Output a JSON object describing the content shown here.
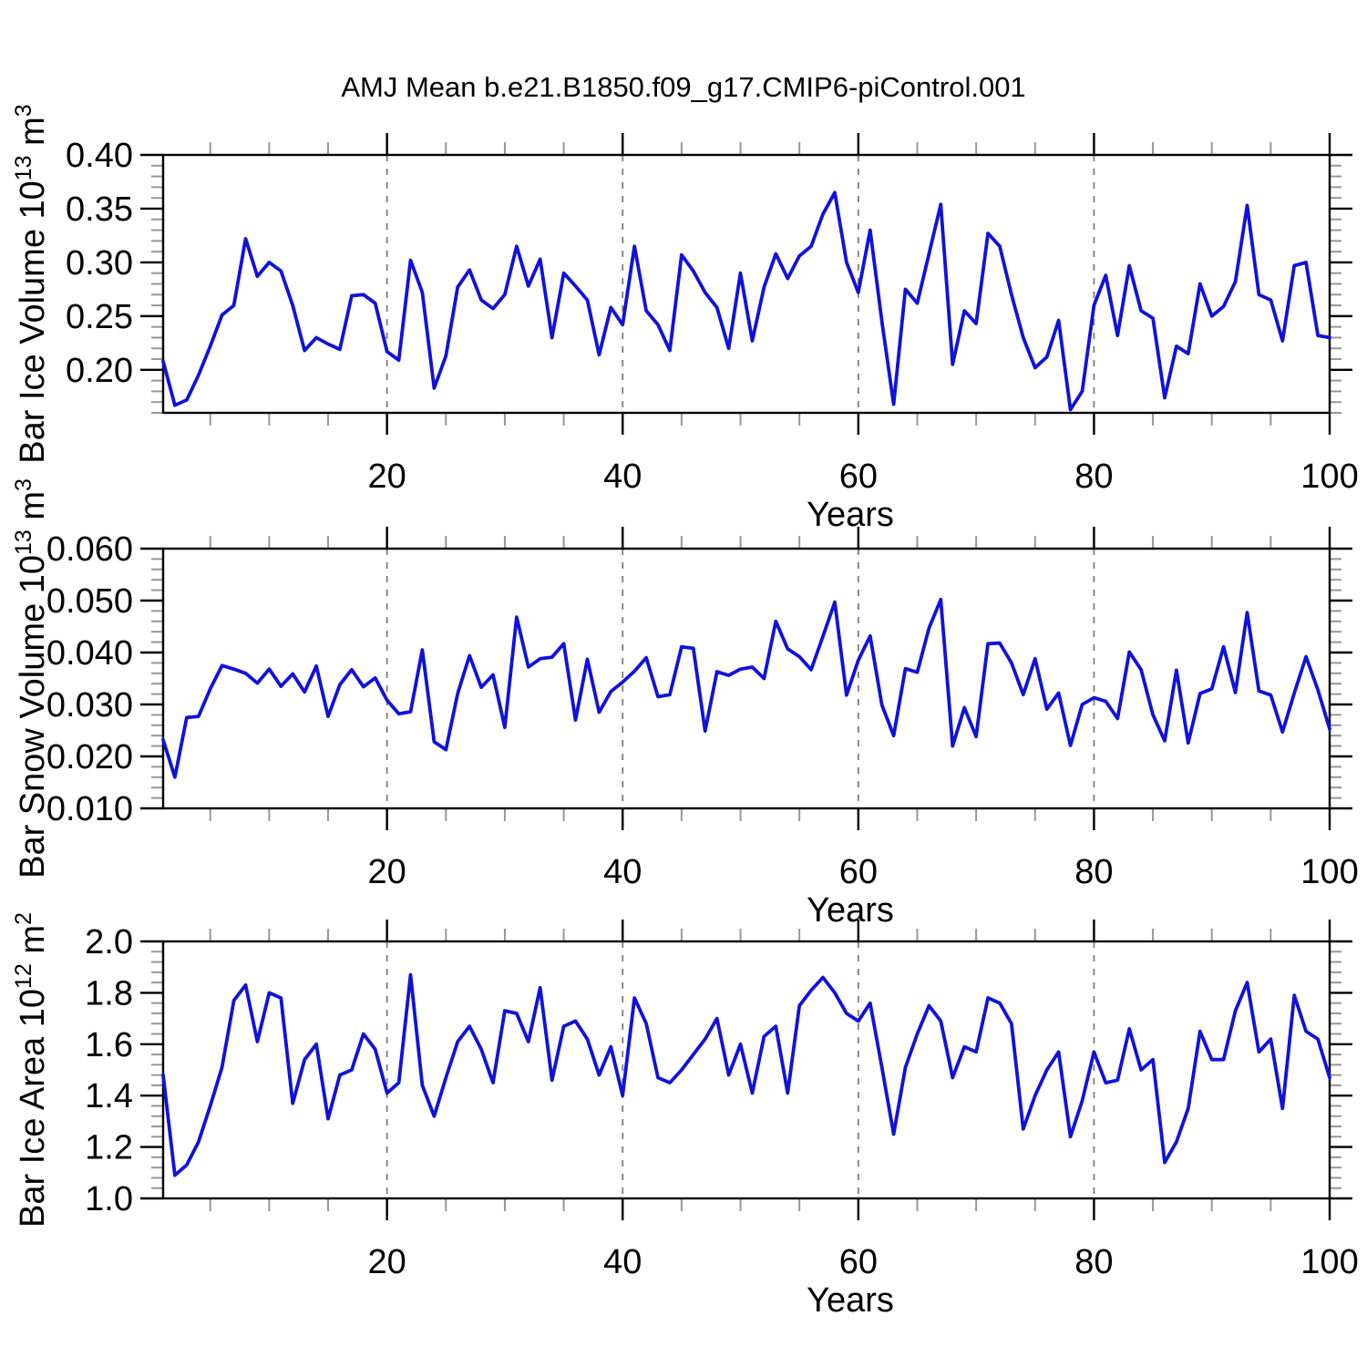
{
  "title": "AMJ Mean b.e21.B1850.f09_g17.CMIP6-piControl.001",
  "xlabel": "Years",
  "line_color": "#0f12dd",
  "chart_data": [
    {
      "type": "line",
      "title": "AMJ Mean b.e21.B1850.f09_g17.CMIP6-piControl.001",
      "xlabel": "Years",
      "ylabel": "Bar Ice Volume 10^13 m^3",
      "ylabel_rich": [
        {
          "t": "Bar Ice Volume 10"
        },
        {
          "t": "13",
          "sup": 1
        },
        {
          "t": " m"
        },
        {
          "t": "3",
          "sup": 1
        }
      ],
      "x_start": 1,
      "x_end": 100,
      "xticks_major": [
        20,
        40,
        60,
        80,
        100
      ],
      "xtick_labels": [
        "20",
        "40",
        "60",
        "80",
        "100"
      ],
      "xminor_step": 5,
      "grid_x": [
        20,
        40,
        60,
        80
      ],
      "ylim": [
        0.16,
        0.4
      ],
      "yticks": [
        0.2,
        0.25,
        0.3,
        0.35,
        0.4
      ],
      "ytick_labels": [
        "0.20",
        "0.25",
        "0.30",
        "0.35",
        "0.40"
      ],
      "yminor_step": 0.01,
      "legend": "none",
      "grid": "vertical-dashed",
      "values": [
        0.208,
        0.167,
        0.172,
        0.195,
        0.222,
        0.251,
        0.26,
        0.322,
        0.287,
        0.3,
        0.292,
        0.26,
        0.218,
        0.23,
        0.224,
        0.219,
        0.269,
        0.27,
        0.262,
        0.217,
        0.209,
        0.302,
        0.272,
        0.183,
        0.213,
        0.277,
        0.293,
        0.265,
        0.257,
        0.27,
        0.315,
        0.278,
        0.303,
        0.23,
        0.29,
        0.278,
        0.265,
        0.214,
        0.258,
        0.242,
        0.315,
        0.255,
        0.242,
        0.218,
        0.307,
        0.292,
        0.272,
        0.258,
        0.22,
        0.29,
        0.227,
        0.277,
        0.308,
        0.285,
        0.306,
        0.315,
        0.345,
        0.365,
        0.3,
        0.272,
        0.33,
        0.245,
        0.168,
        0.275,
        0.262,
        0.308,
        0.354,
        0.205,
        0.255,
        0.243,
        0.327,
        0.315,
        0.27,
        0.23,
        0.202,
        0.212,
        0.246,
        0.163,
        0.18,
        0.26,
        0.288,
        0.232,
        0.297,
        0.255,
        0.248,
        0.174,
        0.222,
        0.215,
        0.28,
        0.25,
        0.259,
        0.282,
        0.353,
        0.27,
        0.265,
        0.227,
        0.297,
        0.3,
        0.232,
        0.23
      ]
    },
    {
      "type": "line",
      "title": "",
      "xlabel": "Years",
      "ylabel": "Bar Snow Volume 10^13 m^3",
      "ylabel_rich": [
        {
          "t": "Bar Snow Volume 10"
        },
        {
          "t": "13",
          "sup": 1
        },
        {
          "t": " m"
        },
        {
          "t": "3",
          "sup": 1
        }
      ],
      "x_start": 1,
      "x_end": 100,
      "xticks_major": [
        20,
        40,
        60,
        80,
        100
      ],
      "xtick_labels": [
        "20",
        "40",
        "60",
        "80",
        "100"
      ],
      "xminor_step": 5,
      "grid_x": [
        20,
        40,
        60,
        80
      ],
      "ylim": [
        0.01,
        0.06
      ],
      "yticks": [
        0.01,
        0.02,
        0.03,
        0.04,
        0.05,
        0.06
      ],
      "ytick_labels": [
        "0.010",
        "0.020",
        "0.030",
        "0.040",
        "0.050",
        "0.060"
      ],
      "yminor_step": 0.002,
      "legend": "none",
      "grid": "vertical-dashed",
      "values": [
        0.0232,
        0.016,
        0.0275,
        0.0277,
        0.033,
        0.0375,
        0.0368,
        0.036,
        0.0341,
        0.0368,
        0.0335,
        0.0359,
        0.0324,
        0.0374,
        0.0277,
        0.0338,
        0.0367,
        0.0334,
        0.0351,
        0.0308,
        0.0282,
        0.0286,
        0.0405,
        0.0228,
        0.0213,
        0.0321,
        0.0394,
        0.0333,
        0.0357,
        0.0256,
        0.0468,
        0.0372,
        0.0388,
        0.0391,
        0.0417,
        0.027,
        0.0387,
        0.0285,
        0.0325,
        0.0343,
        0.0364,
        0.039,
        0.0315,
        0.0319,
        0.0411,
        0.0408,
        0.0249,
        0.0363,
        0.0356,
        0.0368,
        0.0372,
        0.035,
        0.046,
        0.0407,
        0.0392,
        0.0367,
        0.0431,
        0.0497,
        0.0318,
        0.0385,
        0.0432,
        0.0299,
        0.024,
        0.0369,
        0.0362,
        0.0447,
        0.0502,
        0.022,
        0.0294,
        0.0238,
        0.0417,
        0.0418,
        0.038,
        0.0319,
        0.0388,
        0.0291,
        0.0322,
        0.0221,
        0.03,
        0.0313,
        0.0306,
        0.0273,
        0.0401,
        0.0367,
        0.028,
        0.023,
        0.0366,
        0.0226,
        0.0321,
        0.033,
        0.0411,
        0.0323,
        0.0477,
        0.0326,
        0.0318,
        0.0247,
        0.0322,
        0.0392,
        0.0328,
        0.0253
      ]
    },
    {
      "type": "line",
      "title": "",
      "xlabel": "Years",
      "ylabel": "Bar Ice Area 10^12 m^2",
      "ylabel_rich": [
        {
          "t": "Bar Ice Area 10"
        },
        {
          "t": "12",
          "sup": 1
        },
        {
          "t": " m"
        },
        {
          "t": "2",
          "sup": 1
        }
      ],
      "x_start": 1,
      "x_end": 100,
      "xticks_major": [
        20,
        40,
        60,
        80,
        100
      ],
      "xtick_labels": [
        "20",
        "40",
        "60",
        "80",
        "100"
      ],
      "xminor_step": 5,
      "grid_x": [
        20,
        40,
        60,
        80
      ],
      "ylim": [
        1.0,
        2.0
      ],
      "yticks": [
        1.0,
        1.2,
        1.4,
        1.6,
        1.8,
        2.0
      ],
      "ytick_labels": [
        "1.0",
        "1.2",
        "1.4",
        "1.6",
        "1.8",
        "2.0"
      ],
      "yminor_step": 0.04,
      "legend": "none",
      "grid": "vertical-dashed",
      "values": [
        1.48,
        1.09,
        1.13,
        1.22,
        1.36,
        1.51,
        1.77,
        1.83,
        1.61,
        1.8,
        1.78,
        1.37,
        1.54,
        1.6,
        1.31,
        1.48,
        1.5,
        1.64,
        1.58,
        1.41,
        1.45,
        1.87,
        1.44,
        1.32,
        1.47,
        1.61,
        1.67,
        1.58,
        1.45,
        1.73,
        1.72,
        1.61,
        1.82,
        1.46,
        1.67,
        1.69,
        1.62,
        1.48,
        1.59,
        1.4,
        1.78,
        1.68,
        1.47,
        1.45,
        1.5,
        1.56,
        1.62,
        1.7,
        1.48,
        1.6,
        1.41,
        1.63,
        1.67,
        1.41,
        1.75,
        1.81,
        1.86,
        1.8,
        1.72,
        1.69,
        1.76,
        1.51,
        1.25,
        1.51,
        1.64,
        1.75,
        1.69,
        1.47,
        1.59,
        1.57,
        1.78,
        1.76,
        1.68,
        1.27,
        1.4,
        1.5,
        1.57,
        1.24,
        1.38,
        1.57,
        1.45,
        1.46,
        1.66,
        1.5,
        1.54,
        1.14,
        1.22,
        1.35,
        1.65,
        1.54,
        1.54,
        1.73,
        1.84,
        1.57,
        1.62,
        1.35,
        1.79,
        1.65,
        1.62,
        1.47
      ]
    }
  ]
}
